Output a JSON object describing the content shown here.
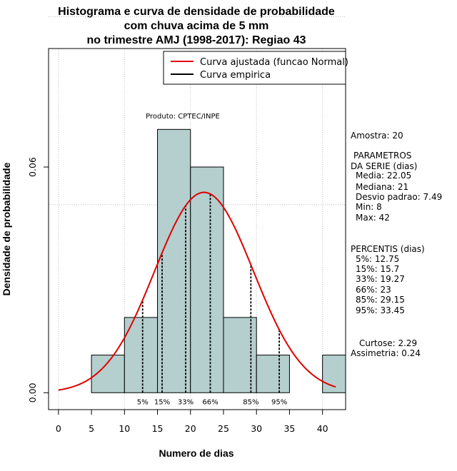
{
  "chart_data": {
    "type": "histogram",
    "title": [
      "Histograma e curva de densidade de probabilidade",
      "com chuva acima de 5 mm",
      "no trimestre AMJ (1998-2017): Regiao 43"
    ],
    "xlabel": "Numero de dias",
    "ylabel": "Densidade de probabilidade",
    "xlim": [
      -1.5,
      43.5
    ],
    "ylim": [
      -0.0045,
      0.0915
    ],
    "x_ticks": [
      0,
      5,
      10,
      15,
      20,
      25,
      30,
      35,
      40
    ],
    "y_ticks": [
      0.0,
      0.06
    ],
    "y_tick_labels": [
      "0.00",
      "0.06"
    ],
    "grid_x": [
      0,
      10,
      20,
      30,
      40
    ],
    "grid_y": [
      0.05,
      0.1
    ],
    "bins": [
      {
        "x0": 5,
        "x1": 10,
        "density": 0.01
      },
      {
        "x0": 10,
        "x1": 15,
        "density": 0.02
      },
      {
        "x0": 15,
        "x1": 20,
        "density": 0.07
      },
      {
        "x0": 20,
        "x1": 25,
        "density": 0.06
      },
      {
        "x0": 25,
        "x1": 30,
        "density": 0.02
      },
      {
        "x0": 30,
        "x1": 35,
        "density": 0.01
      },
      {
        "x0": 40,
        "x1": 45,
        "density": 0.01
      }
    ],
    "bar_color": "#b5cece",
    "normal_fit": {
      "mean": 22.05,
      "sd": 7.49,
      "x_from": 0,
      "x_to": 42,
      "color": "#e00000"
    },
    "percentiles": [
      {
        "label": "5%",
        "value": 12.75
      },
      {
        "label": "15%",
        "value": 15.7
      },
      {
        "label": "33%",
        "value": 19.27
      },
      {
        "label": "66%",
        "value": 23
      },
      {
        "label": "85%",
        "value": 29.15
      },
      {
        "label": "95%",
        "value": 33.45
      }
    ],
    "legend": [
      {
        "label": "Curva ajustada (funcao Normal)",
        "color": "#e00000"
      },
      {
        "label": "Curva empirica",
        "color": "#000000"
      }
    ],
    "legend_position": "top-right"
  },
  "annotation": "Produto: CPTEC/INPE",
  "side_panel": {
    "amostra": "Amostra: 20",
    "param_title_1": "PARAMETROS",
    "param_title_2": "DA SERIE (dias)",
    "media": "Media: 22.05",
    "mediana": "Mediana: 21",
    "desvio": "Desvio padrao: 7.49",
    "min": "Min: 8",
    "max": "Max: 42",
    "perc_title": "PERCENTIS (dias)",
    "p5": "5%: 12.75",
    "p15": "15%: 15.7",
    "p33": "33%: 19.27",
    "p66": "66%: 23",
    "p85": "85%: 29.15",
    "p95": "95%: 33.45",
    "curtose": "Curtose: 2.29",
    "assimetria": "Assimetria: 0.24"
  }
}
